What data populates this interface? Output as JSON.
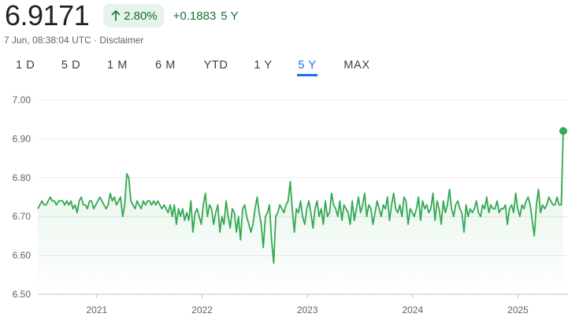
{
  "quote": {
    "price": "6.9171",
    "pct_change": "2.80%",
    "abs_change": "+0.1883",
    "period": "5 Y",
    "timestamp": "7 Jun, 08:38:04 UTC",
    "separator": "·",
    "disclaimer": "Disclaimer",
    "positive_color": "#137333"
  },
  "range_tabs": [
    {
      "label": "1 D",
      "active": false
    },
    {
      "label": "5 D",
      "active": false
    },
    {
      "label": "1 M",
      "active": false
    },
    {
      "label": "6 M",
      "active": false
    },
    {
      "label": "YTD",
      "active": false
    },
    {
      "label": "1 Y",
      "active": false
    },
    {
      "label": "5 Y",
      "active": true
    },
    {
      "label": "MAX",
      "active": false
    }
  ],
  "chart_data": {
    "type": "area",
    "line_color": "#34a853",
    "ylim": [
      6.5,
      7.0
    ],
    "y_ticks": [
      "7.00",
      "6.90",
      "6.80",
      "6.70",
      "6.60",
      "6.50"
    ],
    "x_ticks": [
      "2021",
      "2022",
      "2023",
      "2024",
      "2025"
    ],
    "grid": true,
    "series": [
      {
        "x_start": 2020.44,
        "x_end": 2025.43,
        "values": [
          6.72,
          6.73,
          6.74,
          6.73,
          6.73,
          6.74,
          6.75,
          6.74,
          6.74,
          6.73,
          6.74,
          6.74,
          6.74,
          6.73,
          6.74,
          6.73,
          6.74,
          6.72,
          6.73,
          6.71,
          6.74,
          6.75,
          6.73,
          6.73,
          6.72,
          6.74,
          6.74,
          6.72,
          6.73,
          6.74,
          6.75,
          6.74,
          6.73,
          6.72,
          6.73,
          6.76,
          6.74,
          6.75,
          6.73,
          6.74,
          6.75,
          6.7,
          6.73,
          6.81,
          6.8,
          6.74,
          6.73,
          6.72,
          6.74,
          6.73,
          6.72,
          6.74,
          6.73,
          6.74,
          6.74,
          6.73,
          6.74,
          6.73,
          6.74,
          6.73,
          6.72,
          6.73,
          6.72,
          6.71,
          6.73,
          6.7,
          6.73,
          6.68,
          6.72,
          6.7,
          6.72,
          6.69,
          6.71,
          6.69,
          6.74,
          6.66,
          6.71,
          6.72,
          6.7,
          6.68,
          6.73,
          6.76,
          6.7,
          6.73,
          6.72,
          6.68,
          6.71,
          6.73,
          6.66,
          6.7,
          6.68,
          6.74,
          6.7,
          6.67,
          6.72,
          6.71,
          6.66,
          6.7,
          6.64,
          6.72,
          6.73,
          6.7,
          6.68,
          6.66,
          6.68,
          6.72,
          6.75,
          6.71,
          6.68,
          6.62,
          6.7,
          6.71,
          6.73,
          6.64,
          6.58,
          6.7,
          6.71,
          6.73,
          6.72,
          6.71,
          6.73,
          6.74,
          6.79,
          6.72,
          6.66,
          6.72,
          6.71,
          6.74,
          6.7,
          6.68,
          6.72,
          6.74,
          6.71,
          6.67,
          6.72,
          6.74,
          6.7,
          6.72,
          6.68,
          6.74,
          6.7,
          6.71,
          6.76,
          6.73,
          6.72,
          6.7,
          6.74,
          6.69,
          6.73,
          6.72,
          6.71,
          6.68,
          6.74,
          6.69,
          6.72,
          6.75,
          6.71,
          6.73,
          6.76,
          6.7,
          6.73,
          6.72,
          6.68,
          6.71,
          6.74,
          6.72,
          6.7,
          6.73,
          6.72,
          6.75,
          6.69,
          6.73,
          6.76,
          6.72,
          6.71,
          6.73,
          6.7,
          6.75,
          6.74,
          6.68,
          6.72,
          6.71,
          6.7,
          6.72,
          6.75,
          6.69,
          6.74,
          6.72,
          6.73,
          6.71,
          6.72,
          6.76,
          6.69,
          6.74,
          6.72,
          6.68,
          6.74,
          6.71,
          6.73,
          6.77,
          6.72,
          6.7,
          6.73,
          6.74,
          6.72,
          6.71,
          6.66,
          6.73,
          6.7,
          6.72,
          6.71,
          6.72,
          6.74,
          6.71,
          6.7,
          6.73,
          6.72,
          6.75,
          6.71,
          6.73,
          6.72,
          6.72,
          6.74,
          6.71,
          6.72,
          6.72,
          6.73,
          6.68,
          6.72,
          6.73,
          6.71,
          6.76,
          6.72,
          6.7,
          6.73,
          6.72,
          6.74,
          6.75,
          6.73,
          6.69,
          6.65,
          6.73,
          6.77,
          6.71,
          6.73,
          6.72,
          6.73,
          6.75,
          6.74,
          6.73,
          6.73,
          6.75,
          6.73,
          6.73,
          6.92
        ]
      }
    ]
  }
}
